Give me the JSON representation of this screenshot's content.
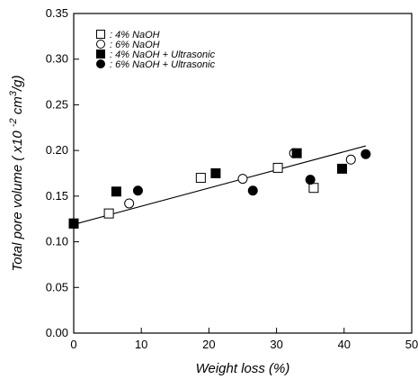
{
  "chart_data": {
    "type": "scatter",
    "xlabel": "Weight loss (%)",
    "ylabel": "Total pore volume ( x10 ",
    "ylabel_sup1": "-2",
    "ylabel_mid": " cm",
    "ylabel_sup2": "3",
    "ylabel_end": "/g)",
    "xlim": [
      0,
      50
    ],
    "ylim": [
      0,
      0.35
    ],
    "xticks": [
      0,
      10,
      20,
      30,
      40,
      50
    ],
    "yticks": [
      0.0,
      0.05,
      0.1,
      0.15,
      0.2,
      0.25,
      0.3,
      0.35
    ],
    "ytick_labels": [
      "0.00",
      "0.05",
      "0.10",
      "0.15",
      "0.20",
      "0.25",
      "0.30",
      "0.35"
    ],
    "xtick_labels": [
      "0",
      "10",
      "20",
      "30",
      "40",
      "50"
    ],
    "legend_position": "top-left",
    "series": [
      {
        "name": ": 4% NaOH",
        "marker": "square",
        "filled": false,
        "points": [
          [
            0,
            0.12
          ],
          [
            5.2,
            0.131
          ],
          [
            18.8,
            0.17
          ],
          [
            30.2,
            0.181
          ],
          [
            35.5,
            0.159
          ]
        ]
      },
      {
        "name": ": 6% NaOH",
        "marker": "circle",
        "filled": false,
        "points": [
          [
            0,
            0.12
          ],
          [
            8.2,
            0.142
          ],
          [
            25,
            0.169
          ],
          [
            32.6,
            0.197
          ],
          [
            41,
            0.19
          ]
        ]
      },
      {
        "name": ": 4% NaOH + Ultrasonic",
        "marker": "square",
        "filled": true,
        "points": [
          [
            0,
            0.12
          ],
          [
            6.3,
            0.155
          ],
          [
            21,
            0.175
          ],
          [
            33,
            0.197
          ],
          [
            39.7,
            0.18
          ]
        ]
      },
      {
        "name": ": 6% NaOH + Ultrasonic",
        "marker": "circle",
        "filled": true,
        "points": [
          [
            0,
            0.12
          ],
          [
            9.5,
            0.156
          ],
          [
            26.5,
            0.156
          ],
          [
            35,
            0.168
          ],
          [
            43.2,
            0.196
          ]
        ]
      }
    ],
    "trendline": {
      "x": [
        0,
        43.2
      ],
      "y": [
        0.119,
        0.205
      ]
    }
  }
}
